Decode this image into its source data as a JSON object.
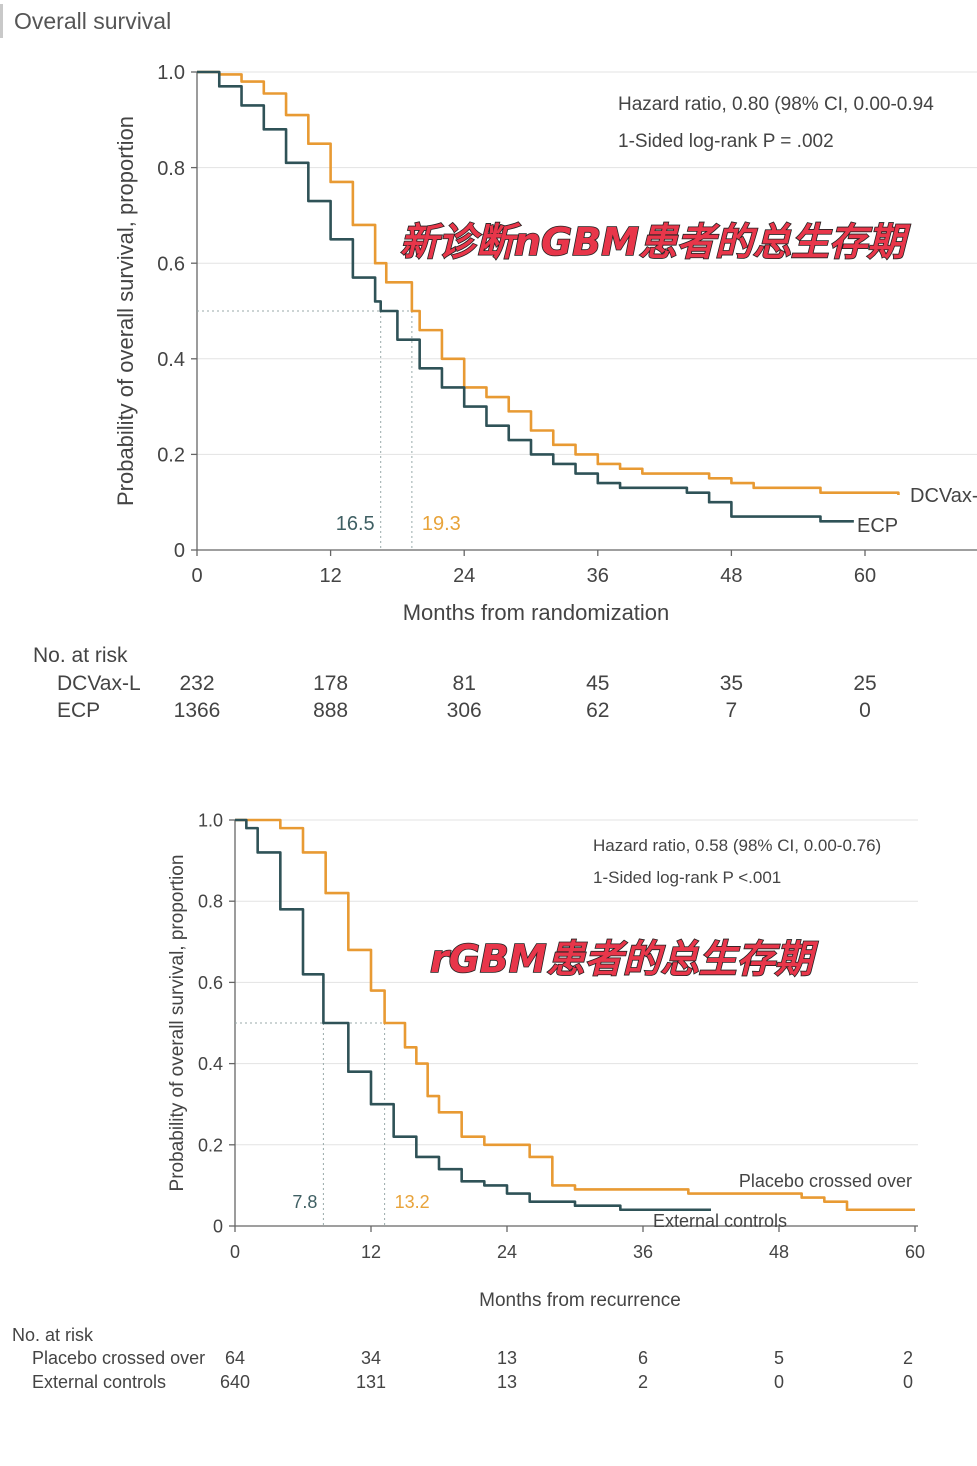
{
  "header": {
    "title": "Overall survival"
  },
  "charts": [
    {
      "type": "line",
      "ylabel": "Probability of overall survival, proportion",
      "xlabel": "Months from randomization",
      "xlim": [
        0,
        60
      ],
      "ylim": [
        0,
        1.0
      ],
      "xticks": [
        "0",
        "12",
        "24",
        "36",
        "48",
        "60"
      ],
      "yticks": [
        "0",
        "0.2",
        "0.4",
        "0.6",
        "0.8",
        "1.0"
      ],
      "annotations": {
        "hazard": "Hazard ratio, 0.80 (98% CI, 0.00-0.94",
        "logrank": "1-Sided log-rank P = .002"
      },
      "overlay_text": "新诊断nGBM患者的总生存期",
      "median_labels": [
        {
          "x": 16.5,
          "text": "16.5",
          "color": "#3f5f63"
        },
        {
          "x": 19.3,
          "text": "19.3",
          "color": "#e8a33a"
        }
      ],
      "series": [
        {
          "name": "DCVax-",
          "color": "#e89a33",
          "x": [
            0,
            2,
            4,
            6,
            8,
            10,
            12,
            14,
            16,
            17,
            19.3,
            20,
            22,
            24,
            26,
            28,
            30,
            32,
            34,
            36,
            38,
            40,
            42,
            44,
            46,
            48,
            50,
            52,
            54,
            56,
            58,
            60,
            62,
            63
          ],
          "y": [
            1.0,
            0.995,
            0.98,
            0.955,
            0.91,
            0.85,
            0.77,
            0.68,
            0.6,
            0.56,
            0.5,
            0.46,
            0.4,
            0.34,
            0.32,
            0.29,
            0.25,
            0.22,
            0.2,
            0.18,
            0.17,
            0.16,
            0.16,
            0.16,
            0.15,
            0.14,
            0.13,
            0.13,
            0.13,
            0.12,
            0.12,
            0.12,
            0.12,
            0.115
          ]
        },
        {
          "name": "ECP",
          "color": "#2f5257",
          "x": [
            0,
            2,
            4,
            6,
            8,
            10,
            12,
            14,
            16,
            16.5,
            18,
            20,
            22,
            24,
            26,
            28,
            30,
            32,
            34,
            36,
            38,
            40,
            42,
            44,
            46,
            48,
            50,
            52,
            54,
            56,
            58,
            59
          ],
          "y": [
            1.0,
            0.97,
            0.93,
            0.88,
            0.81,
            0.73,
            0.65,
            0.57,
            0.52,
            0.5,
            0.44,
            0.38,
            0.34,
            0.3,
            0.26,
            0.23,
            0.2,
            0.18,
            0.16,
            0.14,
            0.13,
            0.13,
            0.13,
            0.12,
            0.1,
            0.07,
            0.07,
            0.07,
            0.07,
            0.06,
            0.06,
            0.06
          ]
        }
      ],
      "risk_table": {
        "title": "No. at risk",
        "rows": [
          {
            "label": "DCVax-L",
            "values": [
              "232",
              "178",
              "81",
              "45",
              "35",
              "25"
            ]
          },
          {
            "label": "ECP",
            "values": [
              "1366",
              "888",
              "306",
              "62",
              "7",
              "0"
            ]
          }
        ]
      }
    },
    {
      "type": "line",
      "ylabel": "Probability of overall survival, proportion",
      "xlabel": "Months from recurrence",
      "xlim": [
        0,
        60
      ],
      "ylim": [
        0,
        1.0
      ],
      "xticks": [
        "0",
        "12",
        "24",
        "36",
        "48",
        "60"
      ],
      "yticks": [
        "0",
        "0.2",
        "0.4",
        "0.6",
        "0.8",
        "1.0"
      ],
      "annotations": {
        "hazard": "Hazard ratio, 0.58 (98% CI, 0.00-0.76)",
        "logrank": "1-Sided log-rank P <.001"
      },
      "overlay_text": "rGBM患者的总生存期",
      "median_labels": [
        {
          "x": 7.8,
          "text": "7.8",
          "color": "#3f5f63"
        },
        {
          "x": 13.2,
          "text": "13.2",
          "color": "#e8a33a"
        }
      ],
      "series": [
        {
          "name": "Placebo crossed over",
          "color": "#e89a33",
          "x": [
            0,
            3,
            4,
            6,
            8,
            10,
            12,
            13.2,
            15,
            16,
            17,
            18,
            20,
            22,
            26,
            28,
            30,
            35,
            40,
            45,
            50,
            52,
            54,
            58,
            60
          ],
          "y": [
            1.0,
            1.0,
            0.98,
            0.92,
            0.82,
            0.68,
            0.58,
            0.5,
            0.44,
            0.4,
            0.32,
            0.28,
            0.22,
            0.2,
            0.17,
            0.1,
            0.09,
            0.09,
            0.08,
            0.08,
            0.07,
            0.06,
            0.04,
            0.04,
            0.04
          ]
        },
        {
          "name": "External controls",
          "color": "#2f5257",
          "x": [
            0,
            1,
            2,
            4,
            6,
            7.8,
            10,
            12,
            14,
            16,
            18,
            20,
            22,
            24,
            26,
            30,
            34,
            38,
            42
          ],
          "y": [
            1.0,
            0.98,
            0.92,
            0.78,
            0.62,
            0.5,
            0.38,
            0.3,
            0.22,
            0.17,
            0.14,
            0.11,
            0.1,
            0.08,
            0.06,
            0.05,
            0.04,
            0.04,
            0.04
          ]
        }
      ],
      "risk_table": {
        "title": "No. at risk",
        "rows": [
          {
            "label": "Placebo crossed over",
            "values": [
              "64",
              "34",
              "13",
              "6",
              "5",
              "2"
            ]
          },
          {
            "label": "External controls",
            "values": [
              "640",
              "131",
              "13",
              "2",
              "0",
              "0"
            ]
          }
        ]
      }
    }
  ]
}
